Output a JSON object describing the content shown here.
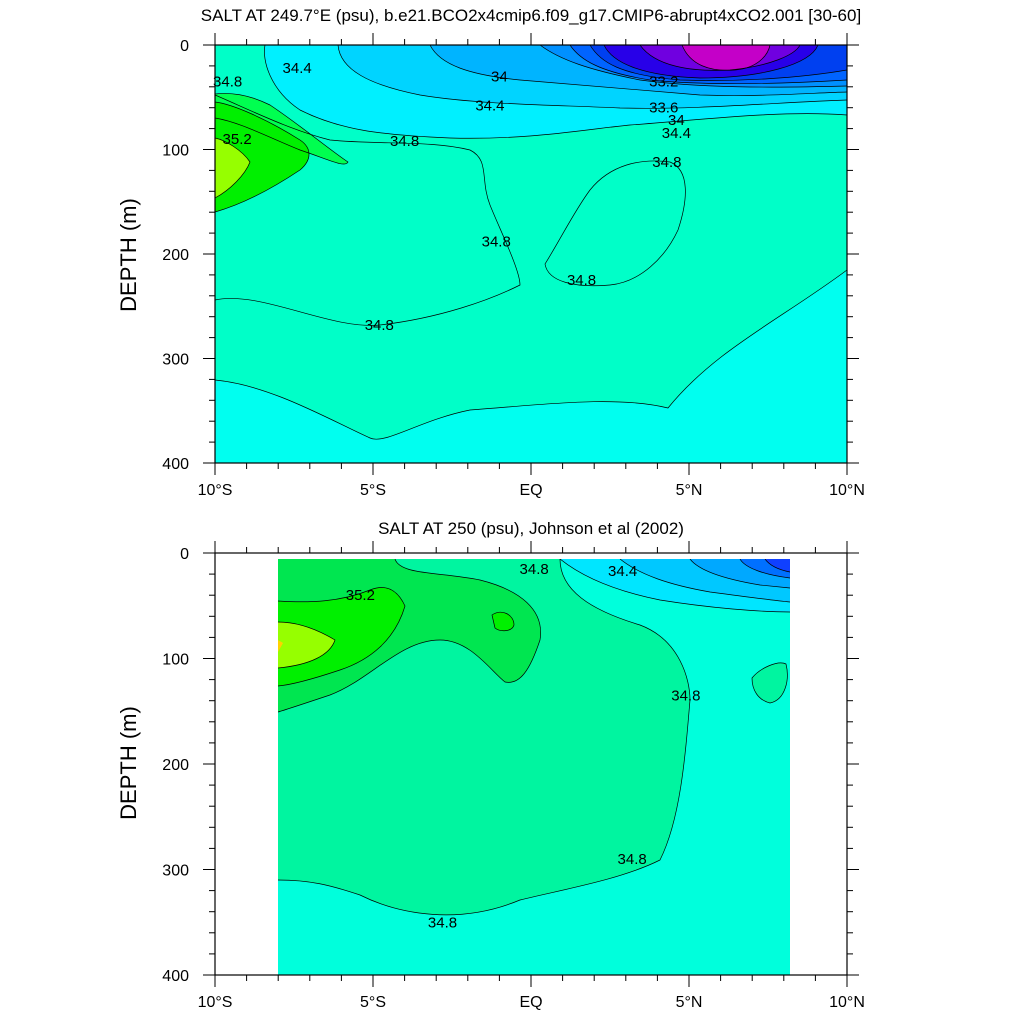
{
  "chart_data": [
    {
      "type": "contour",
      "title": "SALT AT 249.7°E (psu), b.e21.BCO2x4cmip6.f09_g17.CMIP6-abrupt4xCO2.001 [30-60]",
      "ylabel": "DEPTH (m)",
      "xlabel": "",
      "xlim": [
        -10,
        10
      ],
      "ylim": [
        400,
        0
      ],
      "xticks": [
        -10,
        -5,
        0,
        5,
        10
      ],
      "xtick_labels": [
        "10°S",
        "5°S",
        "EQ",
        "5°N",
        "10°N"
      ],
      "yticks": [
        0,
        100,
        200,
        300,
        400
      ],
      "ytick_labels": [
        "0",
        "100",
        "200",
        "300",
        "400"
      ],
      "contour_interval": 0.2,
      "contour_labels": [
        {
          "text": "34.8",
          "lat": -9.6,
          "depth": 35
        },
        {
          "text": "34.4",
          "lat": -7.4,
          "depth": 22
        },
        {
          "text": "34",
          "lat": -1.0,
          "depth": 30
        },
        {
          "text": "34.4",
          "lat": -1.3,
          "depth": 58
        },
        {
          "text": "35.2",
          "lat": -9.3,
          "depth": 90
        },
        {
          "text": "34.8",
          "lat": -4.0,
          "depth": 92
        },
        {
          "text": "34.8",
          "lat": -1.1,
          "depth": 188
        },
        {
          "text": "34.8",
          "lat": 1.6,
          "depth": 225
        },
        {
          "text": "34.8",
          "lat": 4.3,
          "depth": 112
        },
        {
          "text": "34.8",
          "lat": -4.8,
          "depth": 268
        },
        {
          "text": "33.2",
          "lat": 4.2,
          "depth": 35
        },
        {
          "text": "33.6",
          "lat": 4.2,
          "depth": 60
        },
        {
          "text": "34",
          "lat": 4.6,
          "depth": 72
        },
        {
          "text": "34.4",
          "lat": 4.6,
          "depth": 84
        }
      ]
    },
    {
      "type": "contour",
      "title": "SALT AT 250 (psu), Johnson et al (2002)",
      "ylabel": "DEPTH (m)",
      "xlabel": "",
      "xlim": [
        -10,
        10
      ],
      "ylim": [
        400,
        0
      ],
      "xticks": [
        -10,
        -5,
        0,
        5,
        10
      ],
      "xtick_labels": [
        "10°S",
        "5°S",
        "EQ",
        "5°N",
        "10°N"
      ],
      "yticks": [
        0,
        100,
        200,
        300,
        400
      ],
      "ytick_labels": [
        "0",
        "100",
        "200",
        "300",
        "400"
      ],
      "data_extent_lat": [
        -8,
        8.2
      ],
      "contour_interval": 0.2,
      "contour_labels": [
        {
          "text": "34.8",
          "lat": 0.1,
          "depth": 15
        },
        {
          "text": "34.4",
          "lat": 2.9,
          "depth": 17
        },
        {
          "text": "35.2",
          "lat": -5.4,
          "depth": 40
        },
        {
          "text": "34.8",
          "lat": 4.9,
          "depth": 135
        },
        {
          "text": "34.8",
          "lat": 3.2,
          "depth": 290
        },
        {
          "text": "34.8",
          "lat": -2.8,
          "depth": 350
        }
      ]
    }
  ]
}
